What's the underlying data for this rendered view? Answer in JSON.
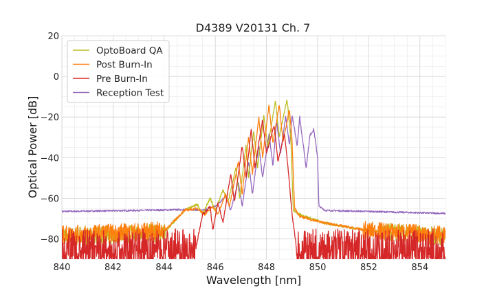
{
  "chart_data": {
    "type": "line",
    "title": "D4389 V20131 Ch. 7",
    "xlabel": "Wavelength [nm]",
    "ylabel": "Optical Power [dB]",
    "xlim": [
      840,
      855
    ],
    "ylim": [
      -90,
      20
    ],
    "xticks": [
      840,
      842,
      844,
      846,
      848,
      850,
      852,
      854
    ],
    "yticks": [
      20,
      0,
      -20,
      -40,
      -60,
      -80
    ],
    "ytick_labels": [
      "20",
      "0",
      "−20",
      "−40",
      "−60",
      "−80"
    ],
    "grid": true,
    "legend_position": "top-left",
    "series": [
      {
        "name": "OptoBoard QA",
        "color": "#bcbd22",
        "noise_floor": -79,
        "points": [
          [
            840,
            -79
          ],
          [
            844,
            -77
          ],
          [
            844.8,
            -66
          ],
          [
            845.3,
            -63
          ],
          [
            845.5,
            -68
          ],
          [
            845.8,
            -60
          ],
          [
            846.0,
            -66
          ],
          [
            846.3,
            -56
          ],
          [
            846.5,
            -62
          ],
          [
            846.8,
            -45
          ],
          [
            846.95,
            -60
          ],
          [
            847.2,
            -34
          ],
          [
            847.3,
            -50
          ],
          [
            847.5,
            -27
          ],
          [
            847.65,
            -45
          ],
          [
            847.9,
            -19
          ],
          [
            848.05,
            -35
          ],
          [
            848.35,
            -12
          ],
          [
            848.5,
            -30
          ],
          [
            848.8,
            -11
          ],
          [
            848.95,
            -30
          ],
          [
            849.05,
            -66
          ],
          [
            849.3,
            -68
          ],
          [
            850.2,
            -72
          ],
          [
            852,
            -76
          ],
          [
            855,
            -79
          ]
        ]
      },
      {
        "name": "Post Burn-In",
        "color": "#ff7f0e",
        "noise_floor": -78,
        "points": [
          [
            840,
            -78
          ],
          [
            844,
            -76
          ],
          [
            844.8,
            -66
          ],
          [
            845.3,
            -65
          ],
          [
            845.6,
            -68
          ],
          [
            845.9,
            -64
          ],
          [
            846.1,
            -68
          ],
          [
            846.4,
            -58
          ],
          [
            846.55,
            -64
          ],
          [
            846.9,
            -42
          ],
          [
            847.05,
            -58
          ],
          [
            847.3,
            -30
          ],
          [
            847.45,
            -48
          ],
          [
            847.7,
            -20
          ],
          [
            847.85,
            -40
          ],
          [
            848.1,
            -14
          ],
          [
            848.25,
            -33
          ],
          [
            848.5,
            -14
          ],
          [
            848.65,
            -32
          ],
          [
            848.9,
            -16
          ],
          [
            849.0,
            -32
          ],
          [
            849.1,
            -65
          ],
          [
            849.3,
            -69
          ],
          [
            850.2,
            -72
          ],
          [
            852,
            -76
          ],
          [
            855,
            -78
          ]
        ]
      },
      {
        "name": "Pre Burn-In",
        "color": "#d62728",
        "noise_floor": -87,
        "points": [
          [
            840,
            -87
          ],
          [
            845.2,
            -87
          ],
          [
            845.5,
            -68
          ],
          [
            845.8,
            -64
          ],
          [
            845.9,
            -76
          ],
          [
            846.1,
            -62
          ],
          [
            846.3,
            -72
          ],
          [
            846.6,
            -48
          ],
          [
            846.75,
            -62
          ],
          [
            847.05,
            -34
          ],
          [
            847.2,
            -50
          ],
          [
            847.4,
            -26
          ],
          [
            847.55,
            -45
          ],
          [
            847.85,
            -21
          ],
          [
            848.0,
            -38
          ],
          [
            848.3,
            -24
          ],
          [
            848.45,
            -42
          ],
          [
            848.7,
            -28
          ],
          [
            848.85,
            -46
          ],
          [
            849.0,
            -68
          ],
          [
            849.2,
            -87
          ],
          [
            855,
            -87
          ]
        ]
      },
      {
        "name": "Reception Test",
        "color": "#9467bd",
        "noise_floor": -66,
        "points": [
          [
            840,
            -66.5
          ],
          [
            844,
            -65.8
          ],
          [
            845,
            -65.5
          ],
          [
            845.5,
            -66
          ],
          [
            846,
            -64
          ],
          [
            846.4,
            -59
          ],
          [
            846.6,
            -66
          ],
          [
            846.9,
            -52
          ],
          [
            847.05,
            -64
          ],
          [
            847.3,
            -42
          ],
          [
            847.45,
            -58
          ],
          [
            847.7,
            -34
          ],
          [
            847.85,
            -50
          ],
          [
            848.1,
            -28
          ],
          [
            848.25,
            -44
          ],
          [
            848.4,
            -22
          ],
          [
            848.55,
            -38
          ],
          [
            848.75,
            -20
          ],
          [
            848.9,
            -34
          ],
          [
            849.0,
            -19
          ],
          [
            849.2,
            -34
          ],
          [
            849.3,
            -20
          ],
          [
            849.55,
            -45
          ],
          [
            849.7,
            -29
          ],
          [
            849.85,
            -26
          ],
          [
            850.0,
            -40
          ],
          [
            850.05,
            -64
          ],
          [
            850.3,
            -66
          ],
          [
            852,
            -66.5
          ],
          [
            855,
            -67.5
          ]
        ]
      }
    ]
  }
}
